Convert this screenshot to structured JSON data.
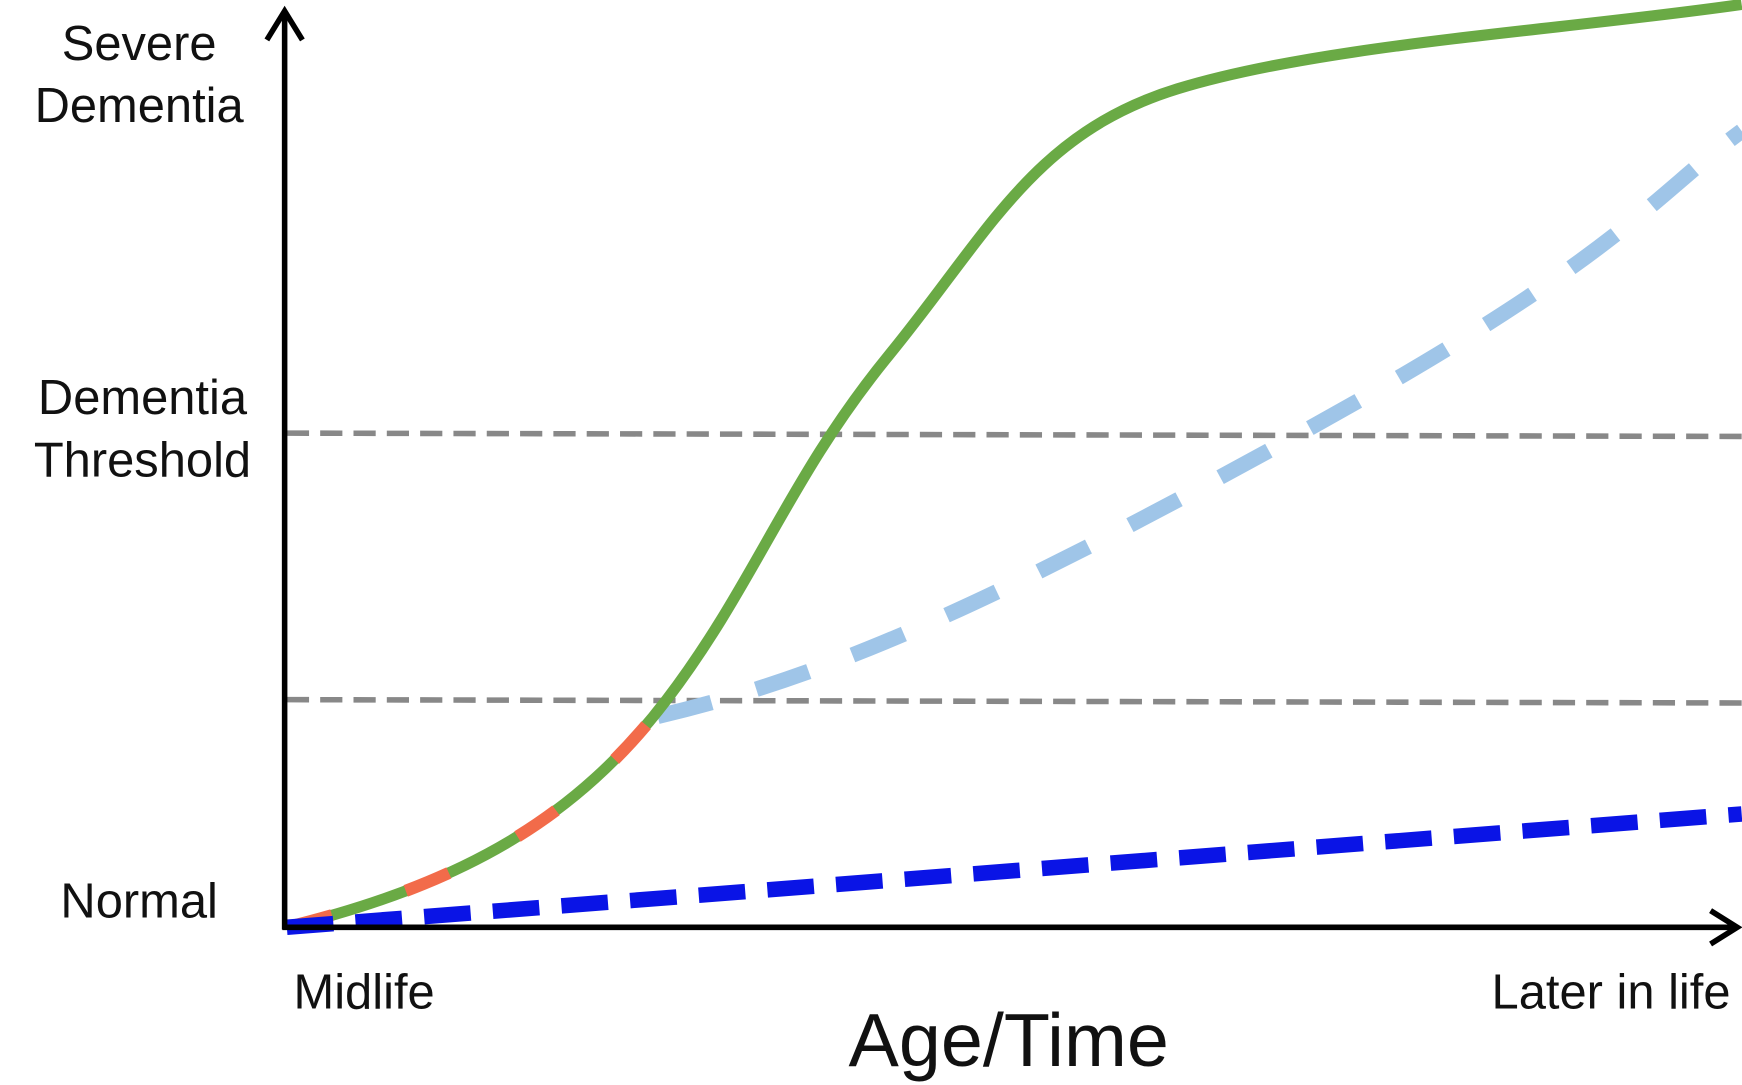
{
  "y_labels": {
    "severe": [
      "Severe",
      "Dementia"
    ],
    "threshold": [
      "Dementia",
      "Threshold"
    ],
    "normal": "Normal"
  },
  "x_labels": {
    "start": "Midlife",
    "end": "Later in life"
  },
  "x_axis_title": "Age/Time"
}
